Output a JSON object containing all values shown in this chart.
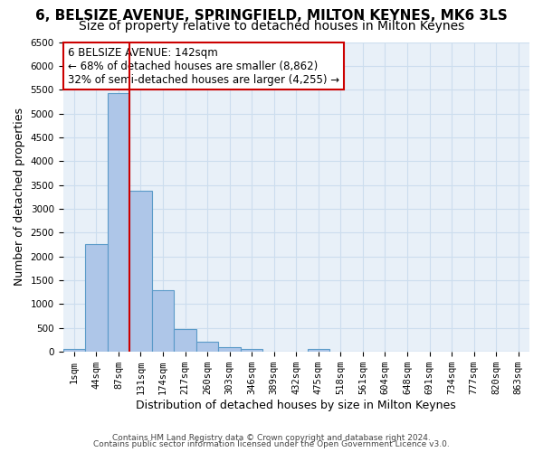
{
  "title": "6, BELSIZE AVENUE, SPRINGFIELD, MILTON KEYNES, MK6 3LS",
  "subtitle": "Size of property relative to detached houses in Milton Keynes",
  "xlabel": "Distribution of detached houses by size in Milton Keynes",
  "ylabel": "Number of detached properties",
  "footnote1": "Contains HM Land Registry data © Crown copyright and database right 2024.",
  "footnote2": "Contains public sector information licensed under the Open Government Licence v3.0.",
  "bar_color": "#aec6e8",
  "bar_edge_color": "#5a9ac8",
  "grid_color": "#ccddee",
  "background_color": "#e8f0f8",
  "annotation_box_color": "#cc0000",
  "vline_color": "#cc0000",
  "bin_labels": [
    "1sqm",
    "44sqm",
    "87sqm",
    "131sqm",
    "174sqm",
    "217sqm",
    "260sqm",
    "303sqm",
    "346sqm",
    "389sqm",
    "432sqm",
    "475sqm",
    "518sqm",
    "561sqm",
    "604sqm",
    "648sqm",
    "691sqm",
    "734sqm",
    "777sqm",
    "820sqm",
    "863sqm"
  ],
  "bar_values": [
    70,
    2270,
    5430,
    3380,
    1300,
    480,
    210,
    100,
    55,
    0,
    0,
    55,
    0,
    0,
    0,
    0,
    0,
    0,
    0,
    0,
    0
  ],
  "ylim": [
    0,
    6500
  ],
  "yticks": [
    0,
    500,
    1000,
    1500,
    2000,
    2500,
    3000,
    3500,
    4000,
    4500,
    5000,
    5500,
    6000,
    6500
  ],
  "property_label": "6 BELSIZE AVENUE: 142sqm",
  "pct_smaller": 68,
  "count_smaller": 8862,
  "pct_larger_semi": 32,
  "count_larger_semi": 4255,
  "vline_x": 2.5,
  "title_fontsize": 11,
  "subtitle_fontsize": 10,
  "axis_label_fontsize": 9,
  "tick_fontsize": 7.5,
  "annotation_fontsize": 8.5,
  "footnote_fontsize": 6.5
}
